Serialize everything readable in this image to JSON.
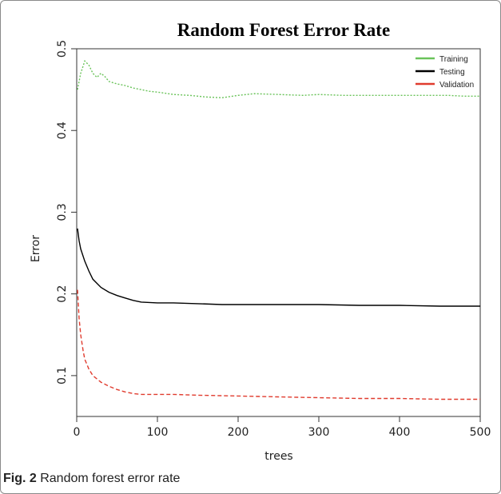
{
  "chart_data": {
    "type": "line",
    "title": "Random Forest Error Rate",
    "xlabel": "trees",
    "ylabel": "Error",
    "xlim": [
      0,
      500
    ],
    "ylim": [
      0.05,
      0.5
    ],
    "xticks": [
      0,
      100,
      200,
      300,
      400,
      500
    ],
    "yticks": [
      0.1,
      0.2,
      0.3,
      0.4,
      0.5
    ],
    "grid": false,
    "legend_position": "top-right",
    "series": [
      {
        "name": "Training",
        "color": "#6ac35a",
        "style": "dotted",
        "x": [
          1,
          5,
          10,
          15,
          20,
          25,
          30,
          35,
          40,
          50,
          60,
          70,
          80,
          90,
          100,
          120,
          140,
          160,
          180,
          200,
          220,
          250,
          280,
          300,
          330,
          360,
          400,
          430,
          460,
          480,
          500
        ],
        "values": [
          0.45,
          0.47,
          0.485,
          0.48,
          0.47,
          0.465,
          0.47,
          0.466,
          0.46,
          0.457,
          0.455,
          0.452,
          0.45,
          0.448,
          0.447,
          0.444,
          0.443,
          0.441,
          0.44,
          0.443,
          0.445,
          0.444,
          0.443,
          0.444,
          0.443,
          0.443,
          0.443,
          0.443,
          0.443,
          0.442,
          0.442
        ]
      },
      {
        "name": "Testing",
        "color": "#000000",
        "style": "solid",
        "x": [
          1,
          3,
          5,
          10,
          15,
          20,
          30,
          40,
          50,
          60,
          70,
          80,
          100,
          120,
          150,
          180,
          200,
          250,
          300,
          350,
          400,
          450,
          500
        ],
        "values": [
          0.28,
          0.265,
          0.255,
          0.24,
          0.228,
          0.218,
          0.208,
          0.202,
          0.198,
          0.195,
          0.192,
          0.19,
          0.189,
          0.189,
          0.188,
          0.187,
          0.187,
          0.187,
          0.187,
          0.186,
          0.186,
          0.185,
          0.185
        ]
      },
      {
        "name": "Validation",
        "color": "#e03b2e",
        "style": "dashed",
        "x": [
          1,
          3,
          5,
          8,
          10,
          15,
          20,
          30,
          40,
          50,
          60,
          70,
          80,
          100,
          120,
          150,
          200,
          250,
          300,
          350,
          400,
          450,
          500
        ],
        "values": [
          0.205,
          0.17,
          0.15,
          0.13,
          0.12,
          0.108,
          0.1,
          0.092,
          0.087,
          0.083,
          0.08,
          0.078,
          0.077,
          0.077,
          0.077,
          0.076,
          0.075,
          0.074,
          0.073,
          0.072,
          0.072,
          0.071,
          0.071
        ]
      }
    ]
  },
  "caption": {
    "label": "Fig. 2",
    "text": " Random forest error rate"
  }
}
